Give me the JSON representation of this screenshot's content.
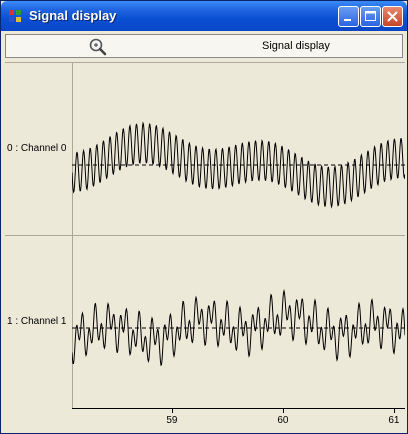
{
  "window": {
    "title": "Signal display"
  },
  "toolbar": {
    "label": "Signal display"
  },
  "chart_data": {
    "type": "line",
    "xlim": [
      58.1,
      61.1
    ],
    "x_ticks": [
      "59",
      "60",
      "61"
    ],
    "x_tick_values": [
      59,
      60,
      61
    ],
    "channels": [
      {
        "label": "0 : Channel 0",
        "name": "Channel 0"
      },
      {
        "label": "1 : Channel 1",
        "name": "Channel 1"
      }
    ]
  },
  "colors": {
    "titlebar": "#0b4fd4",
    "signal": "#000000",
    "background": "#ece9d8"
  }
}
